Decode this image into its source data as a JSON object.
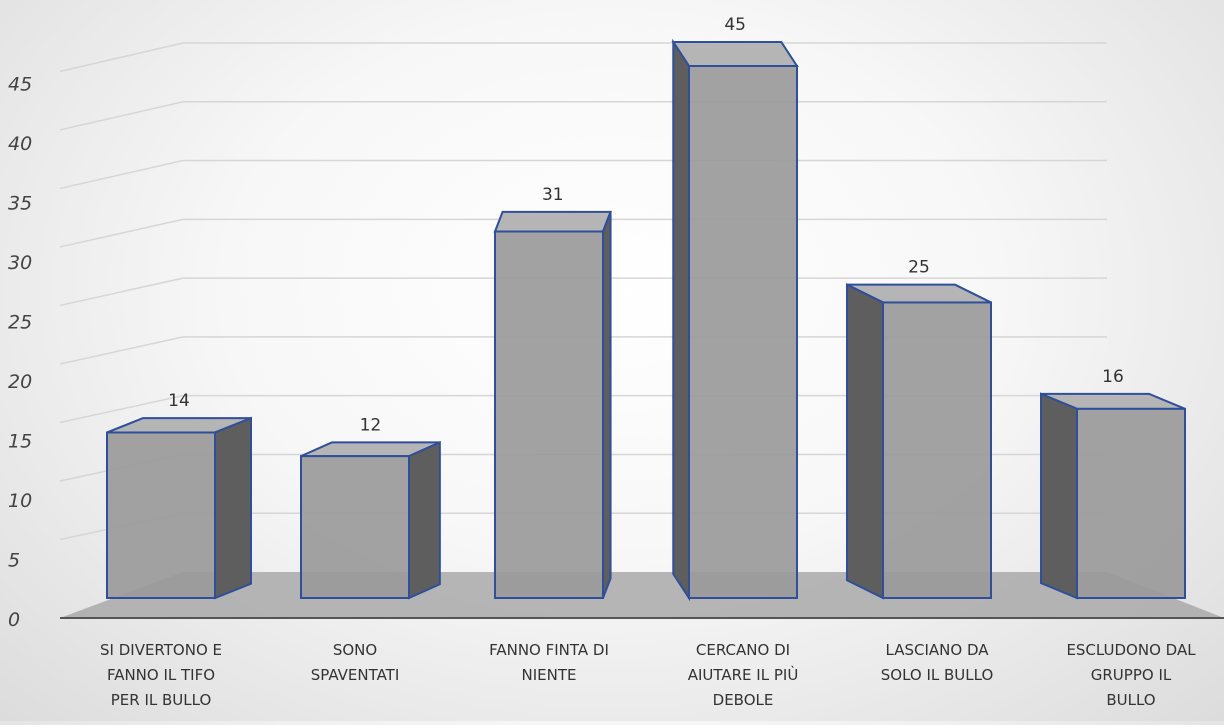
{
  "chart_data": {
    "type": "bar",
    "style": "3d-column",
    "categories": [
      [
        "SI DIVERTONO E",
        "FANNO IL TIFO",
        "PER IL BULLO"
      ],
      [
        "SONO",
        "SPAVENTATI"
      ],
      [
        "FANNO FINTA DI",
        "NIENTE"
      ],
      [
        "CERCANO DI",
        "AIUTARE IL PIÙ",
        "DEBOLE"
      ],
      [
        "LASCIANO DA",
        "SOLO IL BULLO"
      ],
      [
        "ESCLUDONO DAL",
        "GRUPPO IL",
        "BULLO"
      ]
    ],
    "values": [
      14,
      12,
      31,
      45,
      25,
      16
    ],
    "data_labels": [
      "14",
      "12",
      "31",
      "45",
      "25",
      "16"
    ],
    "title": "",
    "xlabel": "",
    "ylabel": "",
    "ylim": [
      0,
      45
    ],
    "yticks": [
      "0",
      "5",
      "10",
      "15",
      "20",
      "25",
      "30",
      "35",
      "40",
      "45"
    ],
    "grid": true,
    "legend": "none",
    "colors": {
      "bar_front": "#9a9a9a",
      "bar_side": "#5e5e5e",
      "bar_top": "#b5b5b5",
      "bar_edge": "#2f4f9a",
      "floor": "#a9a9a9",
      "gridline": "#d6d6d6"
    }
  }
}
